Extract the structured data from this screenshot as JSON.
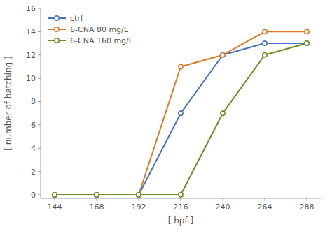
{
  "chart_data": {
    "type": "line",
    "xlabel": "[ hpf ]",
    "ylabel": "[ number of hatching ]",
    "x": [
      144,
      168,
      192,
      216,
      240,
      264,
      288
    ],
    "series": [
      {
        "name": "ctrl",
        "color": "#4472C4",
        "values": [
          0,
          0,
          0,
          7,
          12,
          13,
          13
        ]
      },
      {
        "name": "6-CNA 80 mg/L",
        "color": "#E07820",
        "values": [
          0,
          0,
          0,
          11,
          12,
          14,
          14
        ]
      },
      {
        "name": "6-CNA 160 mg/L",
        "color": "#6B8E23",
        "values": [
          0,
          0,
          0,
          0,
          7,
          12,
          13
        ]
      }
    ],
    "xlim": [
      136,
      296
    ],
    "ylim": [
      -0.3,
      16
    ],
    "xticks": [
      144,
      168,
      192,
      216,
      240,
      264,
      288
    ],
    "yticks": [
      0,
      2,
      4,
      6,
      8,
      10,
      12,
      14,
      16
    ],
    "marker": "circle",
    "grid": false,
    "legend": "upper left"
  }
}
